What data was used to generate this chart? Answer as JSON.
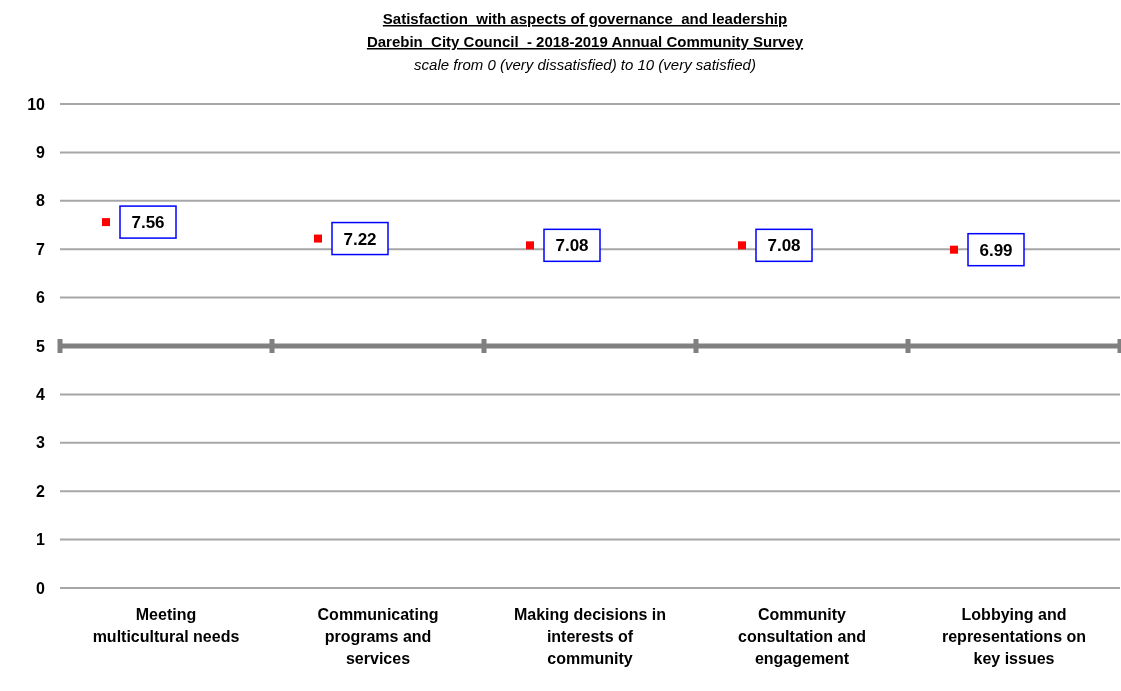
{
  "chart_data": {
    "type": "scatter",
    "title": "Satisfaction  with aspects of governance  and leadership\nDarebin  City Council  - 2018-2019 Annual Community Survey",
    "subtitle": "scale from 0 (very dissatisfied) to 10 (very satisfied)",
    "categories": [
      "Meeting multicultural needs",
      "Communicating programs and services",
      "Making decisions in interests of community",
      "Community consultation and engagement",
      "Lobbying and representations on key issues"
    ],
    "values": [
      7.56,
      7.22,
      7.08,
      7.08,
      6.99
    ],
    "color": "#ff0000",
    "marker": "square",
    "data_labels": true,
    "ylim": [
      0,
      10
    ],
    "yticks": [
      0,
      1,
      2,
      3,
      4,
      5,
      6,
      7,
      8,
      9,
      10
    ],
    "grid": "y",
    "ref_lines": [
      {
        "axis": "y",
        "value": 5,
        "color": "#808080"
      }
    ]
  }
}
